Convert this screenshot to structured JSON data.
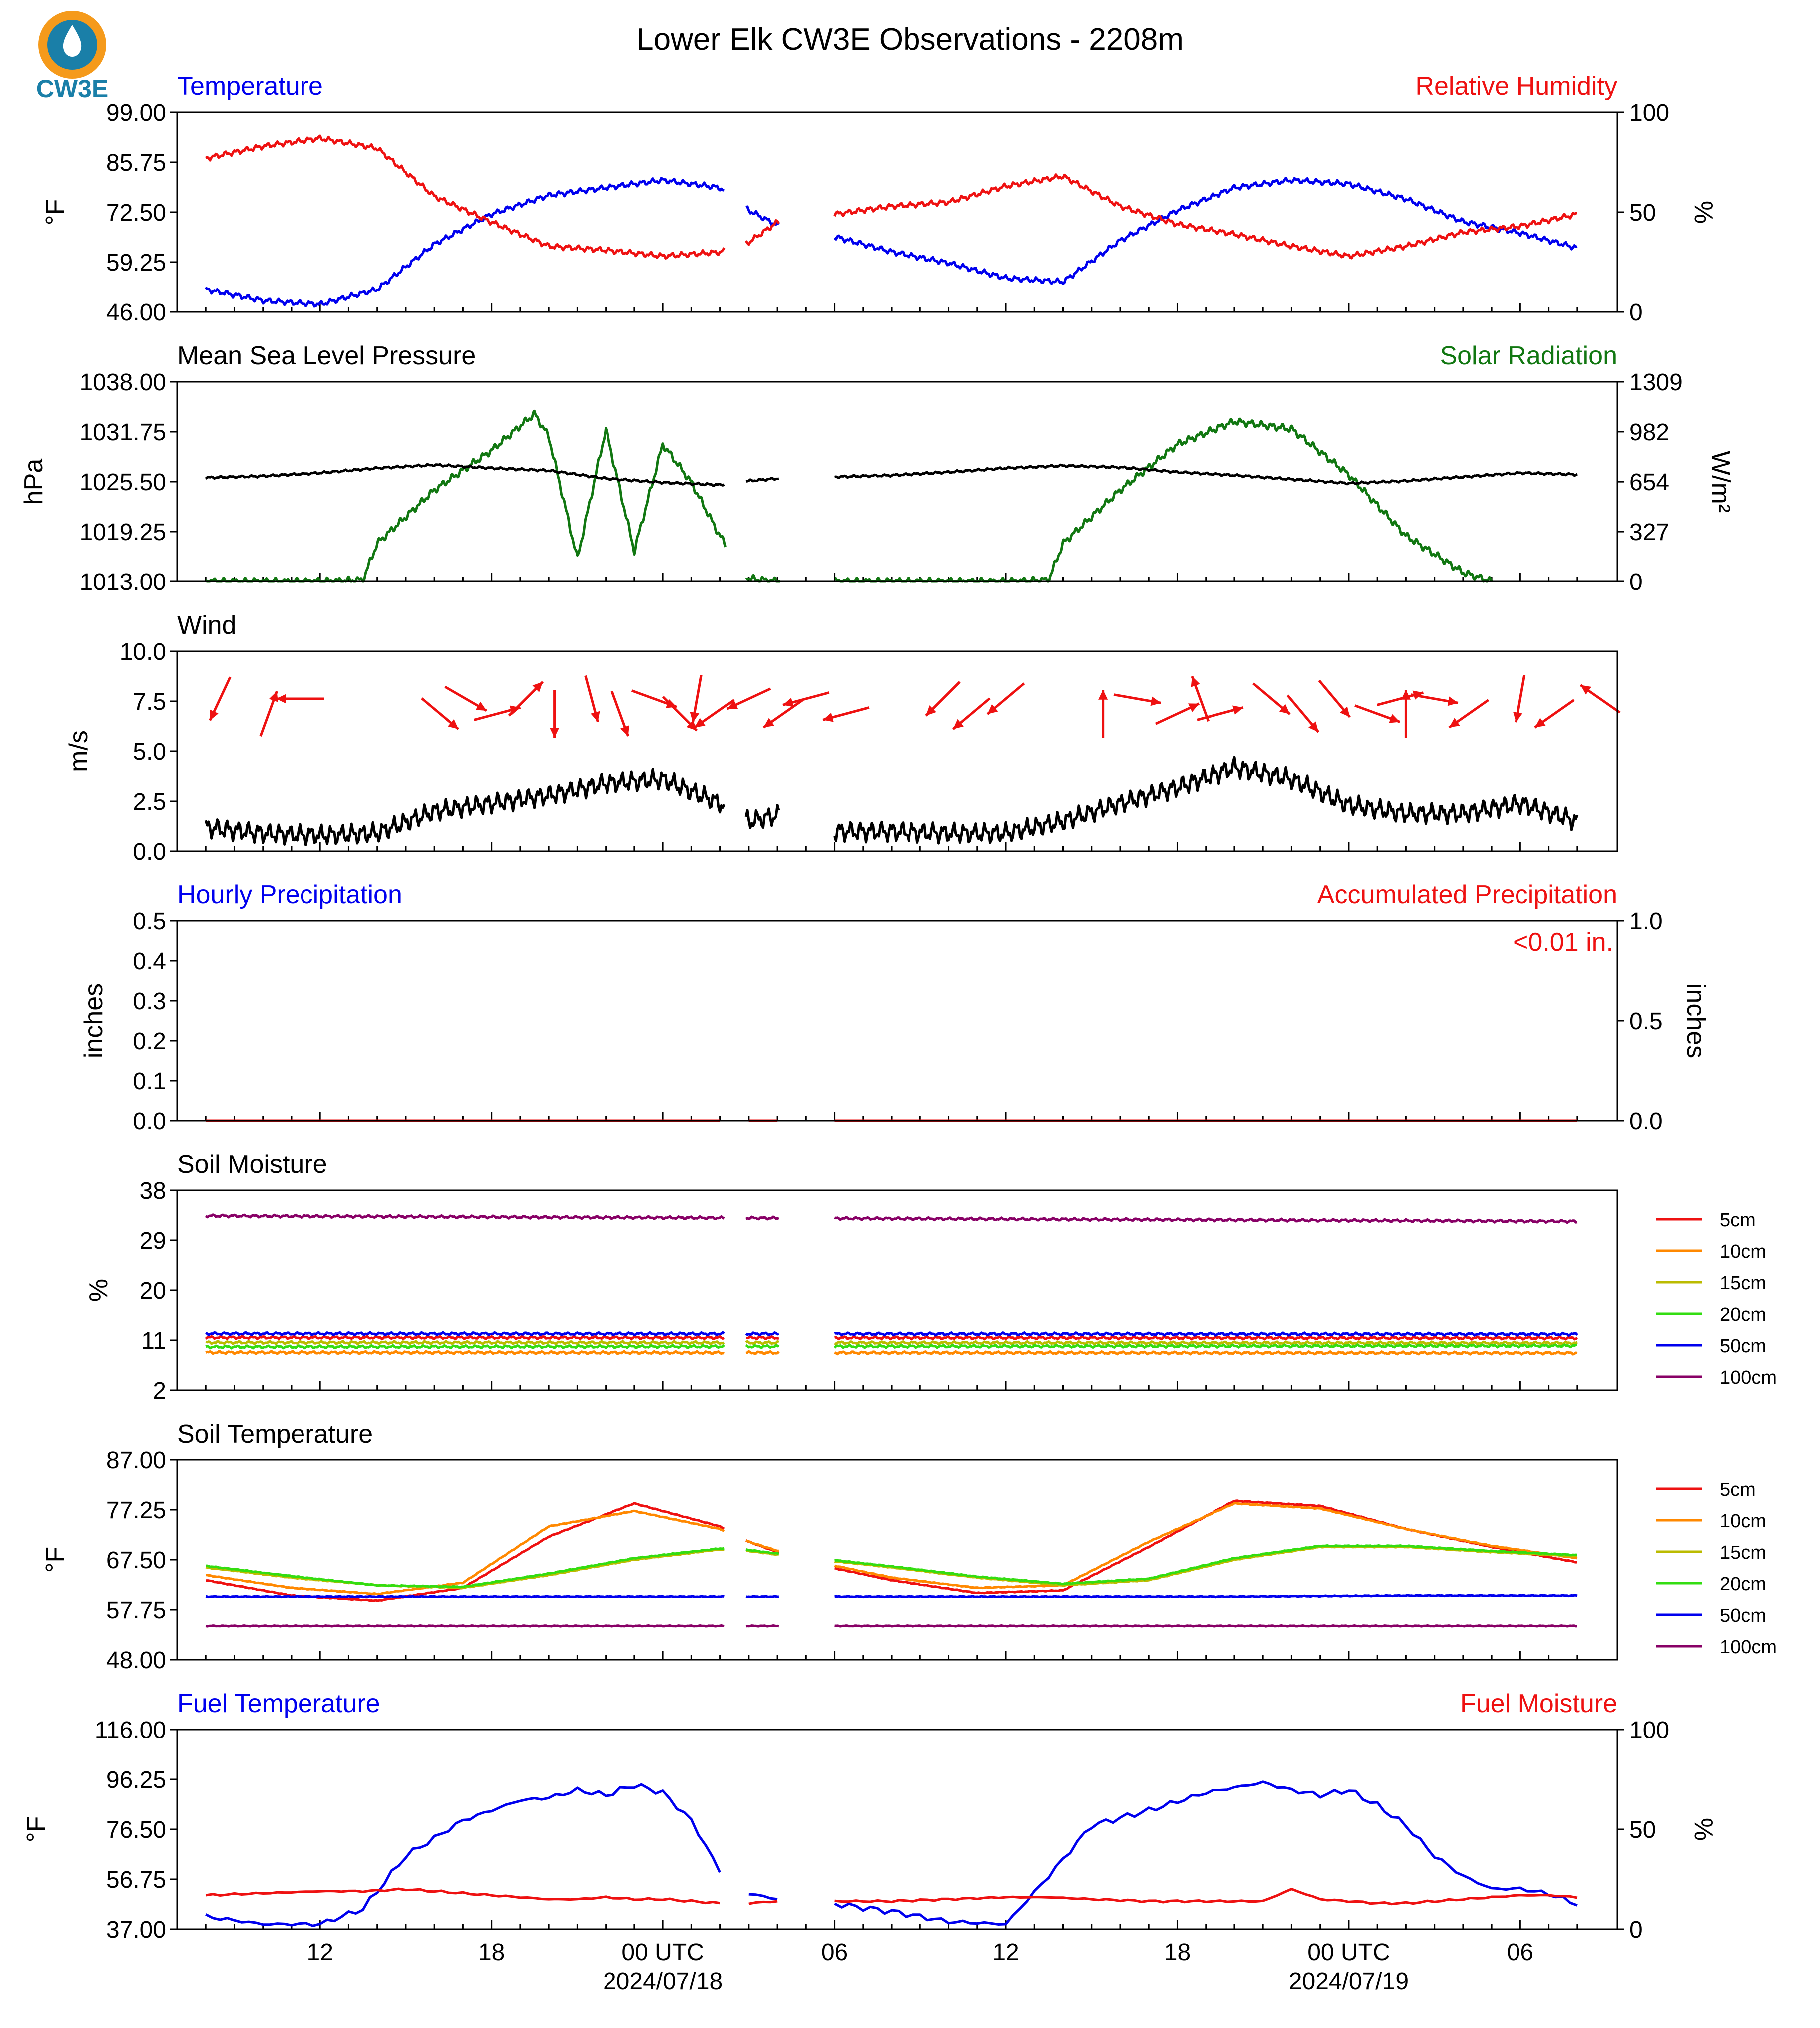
{
  "figure": {
    "title": "Lower Elk CW3E Observations - 2208m",
    "logo_text": "CW3E",
    "x_ticks": [
      "12",
      "18",
      "00 UTC",
      "06",
      "12",
      "18",
      "00 UTC",
      "06"
    ],
    "x_dates": [
      "2024/07/18",
      "2024/07/19"
    ]
  },
  "chart_data": [
    {
      "type": "line",
      "title_left": "Temperature",
      "title_right": "Relative Humidity",
      "ylabel": "°F",
      "ylabel_right": "%",
      "yticks": [
        "46.00",
        "59.25",
        "72.50",
        "85.75",
        "99.00"
      ],
      "yticks_right": [
        "0",
        "50",
        "100"
      ],
      "ylim": [
        46,
        99
      ],
      "ylim_right": [
        0,
        100
      ],
      "colors": {
        "left": "#0000ee",
        "right": "#ee1111"
      },
      "x_hours": [
        8,
        10,
        12,
        14,
        16,
        18,
        20,
        22,
        24,
        26,
        27,
        28,
        30,
        32,
        34,
        36,
        38,
        40,
        42,
        44,
        46,
        48,
        50,
        52,
        54,
        56
      ],
      "series": [
        {
          "name": "Temperature",
          "axis": "left",
          "values": [
            52,
            49,
            48,
            52,
            64,
            72,
            77,
            79,
            81,
            79,
            73,
            69,
            66,
            62,
            59,
            55,
            54,
            65,
            73,
            79,
            81,
            80,
            76,
            70,
            67,
            63
          ]
        },
        {
          "name": "Relative Humidity",
          "axis": "right",
          "values": [
            77,
            83,
            87,
            82,
            58,
            45,
            33,
            31,
            28,
            30,
            35,
            45,
            49,
            53,
            55,
            63,
            68,
            53,
            44,
            39,
            33,
            28,
            33,
            40,
            43,
            49
          ]
        }
      ]
    },
    {
      "type": "line",
      "title_left": "Mean Sea Level Pressure",
      "title_right": "Solar Radiation",
      "ylabel": "hPa",
      "ylabel_right": "W/m²",
      "yticks": [
        "1013.00",
        "1019.25",
        "1025.50",
        "1031.75",
        "1038.00"
      ],
      "yticks_right": [
        "0",
        "327",
        "654",
        "982",
        "1309"
      ],
      "ylim": [
        1013,
        1038
      ],
      "ylim_right": [
        0,
        1309
      ],
      "colors": {
        "left": "#000000",
        "right": "#117711"
      },
      "series": [
        {
          "name": "Mean Sea Level Pressure",
          "axis": "left",
          "x_hours": [
            8,
            10,
            12,
            14,
            16,
            18,
            20,
            22,
            24,
            26,
            27,
            28,
            30,
            32,
            34,
            36,
            38,
            40,
            42,
            44,
            46,
            48,
            50,
            52,
            54,
            56
          ],
          "values": [
            1026.0,
            1026.2,
            1026.6,
            1027.2,
            1027.6,
            1027.2,
            1026.9,
            1025.9,
            1025.4,
            1025.1,
            1025.6,
            1025.9,
            1026.1,
            1026.3,
            1026.7,
            1027.2,
            1027.5,
            1027.3,
            1026.7,
            1026.3,
            1025.8,
            1025.3,
            1025.6,
            1026.1,
            1026.6,
            1026.4
          ]
        },
        {
          "name": "Solar Radiation",
          "axis": "right",
          "x_hours": [
            8,
            10,
            12,
            13.5,
            14,
            16,
            18,
            19.5,
            20,
            21,
            22,
            23,
            24,
            25,
            26,
            27,
            28,
            32,
            34,
            36,
            37.5,
            38,
            40,
            42,
            44,
            46,
            48,
            50,
            52,
            53
          ],
          "values": [
            0,
            0,
            0,
            10,
            250,
            600,
            860,
            1100,
            950,
            150,
            1000,
            200,
            900,
            650,
            300,
            20,
            0,
            0,
            0,
            0,
            10,
            250,
            600,
            900,
            1050,
            1000,
            700,
            300,
            60,
            0
          ]
        }
      ]
    },
    {
      "type": "line",
      "title_left": "Wind",
      "ylabel": "m/s",
      "yticks": [
        "0.0",
        "2.5",
        "5.0",
        "7.5",
        "10.0"
      ],
      "ylim": [
        0,
        10
      ],
      "colors": {
        "line": "#000000",
        "arrows": "#ee1111"
      },
      "x_hours": [
        8,
        10,
        12,
        14,
        16,
        18,
        20,
        22,
        24,
        26,
        27,
        28,
        30,
        32,
        34,
        36,
        38,
        40,
        42,
        44,
        46,
        48,
        50,
        52,
        54,
        56
      ],
      "values": [
        1.2,
        0.9,
        0.8,
        0.9,
        2.0,
        2.4,
        2.8,
        3.4,
        3.6,
        2.4,
        1.5,
        1.8,
        1.0,
        1.0,
        0.9,
        0.9,
        1.5,
        2.4,
        3.2,
        4.2,
        3.6,
        2.3,
        1.9,
        1.9,
        2.4,
        1.5
      ],
      "arrows": [
        {
          "hour": 8.5,
          "dir_deg": 205
        },
        {
          "hour": 10.2,
          "dir_deg": 20
        },
        {
          "hour": 11.3,
          "dir_deg": 270
        },
        {
          "hour": 16.2,
          "dir_deg": 130
        },
        {
          "hour": 17.1,
          "dir_deg": 120
        },
        {
          "hour": 18.2,
          "dir_deg": 75
        },
        {
          "hour": 19.2,
          "dir_deg": 45
        },
        {
          "hour": 20.2,
          "dir_deg": 180
        },
        {
          "hour": 21.5,
          "dir_deg": 165
        },
        {
          "hour": 22.5,
          "dir_deg": 160
        },
        {
          "hour": 23.7,
          "dir_deg": 110
        },
        {
          "hour": 24.6,
          "dir_deg": 135
        },
        {
          "hour": 25.2,
          "dir_deg": 190
        },
        {
          "hour": 25.8,
          "dir_deg": 235
        },
        {
          "hour": 27.0,
          "dir_deg": 245
        },
        {
          "hour": 28.2,
          "dir_deg": 235
        },
        {
          "hour": 29.0,
          "dir_deg": 255
        },
        {
          "hour": 30.4,
          "dir_deg": 255
        },
        {
          "hour": 33.8,
          "dir_deg": 225
        },
        {
          "hour": 34.8,
          "dir_deg": 230
        },
        {
          "hour": 36.0,
          "dir_deg": 230
        },
        {
          "hour": 39.4,
          "dir_deg": 0
        },
        {
          "hour": 40.6,
          "dir_deg": 100
        },
        {
          "hour": 42.0,
          "dir_deg": 65
        },
        {
          "hour": 42.8,
          "dir_deg": 340
        },
        {
          "hour": 43.5,
          "dir_deg": 75
        },
        {
          "hour": 45.3,
          "dir_deg": 130
        },
        {
          "hour": 46.4,
          "dir_deg": 140
        },
        {
          "hour": 47.5,
          "dir_deg": 140
        },
        {
          "hour": 49.0,
          "dir_deg": 110
        },
        {
          "hour": 49.8,
          "dir_deg": 75
        },
        {
          "hour": 50.0,
          "dir_deg": 0
        },
        {
          "hour": 51.0,
          "dir_deg": 100
        },
        {
          "hour": 52.2,
          "dir_deg": 235
        },
        {
          "hour": 54.0,
          "dir_deg": 190
        },
        {
          "hour": 55.2,
          "dir_deg": 235
        },
        {
          "hour": 56.8,
          "dir_deg": 305
        }
      ]
    },
    {
      "type": "line",
      "title_left": "Hourly Precipitation",
      "title_right": "Accumulated Precipitation",
      "annotation": "<0.01 in.",
      "ylabel": "inches",
      "ylabel_right": "inches",
      "yticks": [
        "0.0",
        "0.1",
        "0.2",
        "0.3",
        "0.4",
        "0.5"
      ],
      "yticks_right": [
        "0.0",
        "0.5",
        "1.0"
      ],
      "ylim": [
        0,
        0.5
      ],
      "ylim_right": [
        0,
        1.0
      ],
      "colors": {
        "left": "#0000ee",
        "right": "#ee1111"
      },
      "x_hours": [
        8,
        56
      ],
      "series": [
        {
          "name": "Hourly Precipitation",
          "axis": "left",
          "values": [
            0,
            0
          ]
        },
        {
          "name": "Accumulated Precipitation",
          "axis": "right",
          "values": [
            0,
            0
          ]
        }
      ]
    },
    {
      "type": "line",
      "title_left": "Soil Moisture",
      "ylabel": "%",
      "yticks": [
        "2",
        "11",
        "20",
        "29",
        "38"
      ],
      "ylim": [
        2,
        38
      ],
      "x_hours": [
        8,
        56
      ],
      "series": [
        {
          "name": "5cm",
          "color": "#ee1111",
          "values": [
            11.5,
            11.4
          ]
        },
        {
          "name": "10cm",
          "color": "#ff8800",
          "values": [
            8.8,
            8.7
          ]
        },
        {
          "name": "15cm",
          "color": "#bbbb00",
          "values": [
            10.6,
            10.5
          ]
        },
        {
          "name": "20cm",
          "color": "#33dd11",
          "values": [
            9.8,
            10.0
          ]
        },
        {
          "name": "50cm",
          "color": "#0000ee",
          "values": [
            12.2,
            12.1
          ]
        },
        {
          "name": "100cm",
          "color": "#880066",
          "values": [
            33.4,
            32.4
          ]
        }
      ]
    },
    {
      "type": "line",
      "title_left": "Soil Temperature",
      "ylabel": "°F",
      "yticks": [
        "48.00",
        "57.75",
        "67.50",
        "77.25",
        "87.00"
      ],
      "ylim": [
        48,
        87
      ],
      "x_hours": [
        8,
        11,
        14,
        17,
        20,
        23,
        26,
        27,
        29,
        32,
        35,
        38,
        41,
        44,
        47,
        50,
        53,
        56
      ],
      "series": [
        {
          "name": "5cm",
          "color": "#ee1111",
          "values": [
            63.5,
            60.5,
            59.5,
            62,
            72,
            78.5,
            74,
            71,
            67,
            63.5,
            61,
            61.5,
            70,
            79,
            78,
            73.5,
            70,
            67
          ]
        },
        {
          "name": "10cm",
          "color": "#ff8800",
          "values": [
            64.5,
            62,
            60.8,
            63,
            74,
            77,
            73.5,
            71,
            67.5,
            64,
            62,
            62.5,
            71,
            78.5,
            77.5,
            73.5,
            70.2,
            67.8
          ]
        },
        {
          "name": "15cm",
          "color": "#bbbb00",
          "values": [
            66,
            64,
            62.5,
            62,
            64.5,
            67.5,
            69.5,
            69.2,
            67.8,
            66,
            64,
            62.5,
            63.5,
            67.5,
            70,
            70,
            69,
            68.2
          ]
        },
        {
          "name": "20cm",
          "color": "#33dd11",
          "values": [
            66.3,
            64.3,
            62.5,
            62.2,
            64.8,
            67.8,
            69.7,
            69.4,
            68,
            66.2,
            64.2,
            62.8,
            63.8,
            67.8,
            70.2,
            70.2,
            69.2,
            68.4
          ]
        },
        {
          "name": "50cm",
          "color": "#0000ee",
          "values": [
            60.3,
            60.3,
            60.3,
            60.3,
            60.3,
            60.3,
            60.3,
            60.3,
            60.3,
            60.3,
            60.3,
            60.3,
            60.3,
            60.3,
            60.4,
            60.5,
            60.5,
            60.5
          ]
        },
        {
          "name": "100cm",
          "color": "#880066",
          "values": [
            54.6,
            54.6,
            54.6,
            54.6,
            54.6,
            54.6,
            54.6,
            54.6,
            54.6,
            54.6,
            54.6,
            54.6,
            54.6,
            54.6,
            54.6,
            54.6,
            54.6,
            54.6
          ]
        }
      ]
    },
    {
      "type": "line",
      "title_left": "Fuel Temperature",
      "title_right": "Fuel Moisture",
      "ylabel": "°F",
      "ylabel_right": "%",
      "yticks": [
        "37.00",
        "56.75",
        "76.50",
        "96.25",
        "116.00"
      ],
      "yticks_right": [
        "0",
        "50",
        "100"
      ],
      "ylim": [
        37,
        116
      ],
      "ylim_right": [
        0,
        100
      ],
      "colors": {
        "left": "#0000ee",
        "right": "#ee1111"
      },
      "x_hours": [
        8,
        10,
        12,
        13.5,
        15,
        17,
        19,
        20,
        21,
        22,
        23,
        24,
        25,
        26,
        27,
        28,
        30,
        32,
        34,
        36,
        37.5,
        39,
        41,
        43,
        45,
        46,
        47,
        48,
        49,
        50,
        51,
        52,
        53,
        54,
        55,
        56
      ],
      "series": [
        {
          "name": "Fuel Temperature",
          "axis": "left",
          "values": [
            42,
            39,
            39,
            45,
            66,
            80,
            88,
            89,
            92,
            90,
            94,
            91,
            80,
            60,
            51,
            49,
            47,
            44,
            40,
            39,
            58,
            78,
            84,
            91,
            95,
            92,
            90,
            92,
            86,
            78,
            66,
            58,
            53,
            53,
            51,
            47
          ]
        },
        {
          "name": "Fuel Moisture",
          "axis": "right",
          "values": [
            17,
            18,
            19,
            19,
            20,
            18,
            16,
            15,
            15,
            16,
            15,
            15,
            14,
            13,
            13,
            14,
            14,
            14,
            15,
            16,
            16,
            15,
            14,
            14,
            14,
            20,
            15,
            14,
            13,
            13,
            14,
            15,
            16,
            17,
            17,
            16
          ]
        }
      ]
    }
  ],
  "legend": {
    "entries": [
      {
        "label": "5cm",
        "color": "#ee1111"
      },
      {
        "label": "10cm",
        "color": "#ff8800"
      },
      {
        "label": "15cm",
        "color": "#bbbb00"
      },
      {
        "label": "20cm",
        "color": "#33dd11"
      },
      {
        "label": "50cm",
        "color": "#0000ee"
      },
      {
        "label": "100cm",
        "color": "#880066"
      }
    ]
  }
}
